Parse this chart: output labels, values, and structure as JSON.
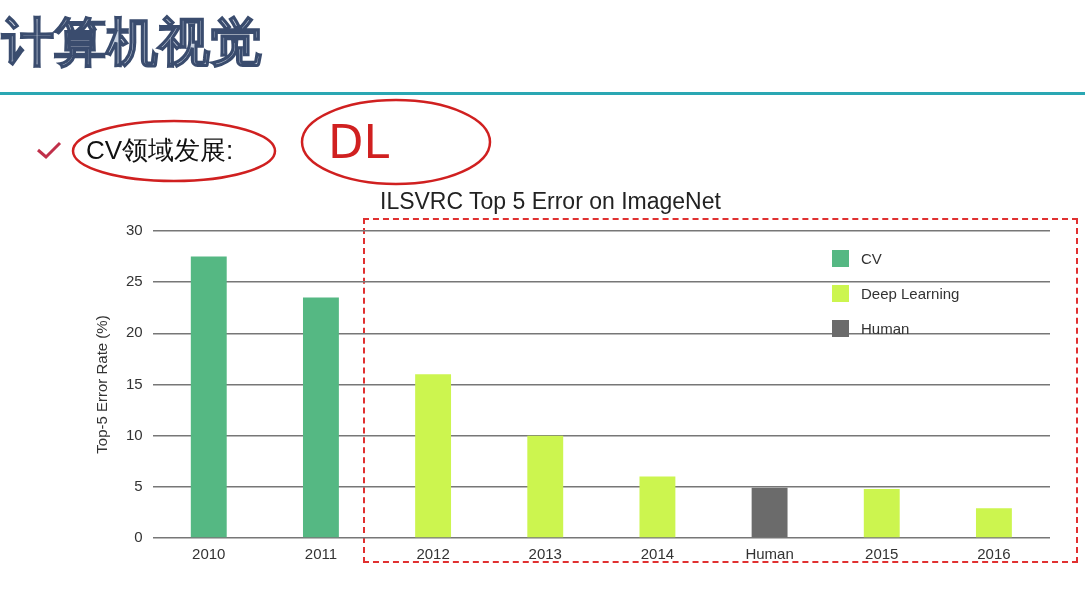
{
  "chart_data": {
    "type": "bar",
    "title": "ILSVRC Top 5 Error on ImageNet",
    "ylabel": "Top-5 Error Rate (%)",
    "annotations": [
      "计算机视觉",
      "CV领域发展:",
      "DL"
    ],
    "categories": [
      "2010",
      "2011",
      "2012",
      "2013",
      "2014",
      "Human",
      "2015",
      "2016"
    ],
    "series": [
      {
        "name": "CV",
        "color": "#55b883",
        "values": [
          27.5,
          23.5,
          null,
          null,
          null,
          null,
          null,
          null
        ]
      },
      {
        "name": "Deep Learning",
        "color": "#ccf54f",
        "values": [
          null,
          null,
          16.0,
          10.0,
          6.0,
          null,
          4.8,
          2.9
        ]
      },
      {
        "name": "Human",
        "color": "#6b6b6b",
        "values": [
          null,
          null,
          null,
          null,
          null,
          4.9,
          null,
          null
        ]
      }
    ],
    "ylim": [
      0,
      30
    ],
    "yticks": [
      0,
      5,
      10,
      15,
      20,
      25,
      30
    ],
    "grid": "y",
    "legend": "top right"
  }
}
